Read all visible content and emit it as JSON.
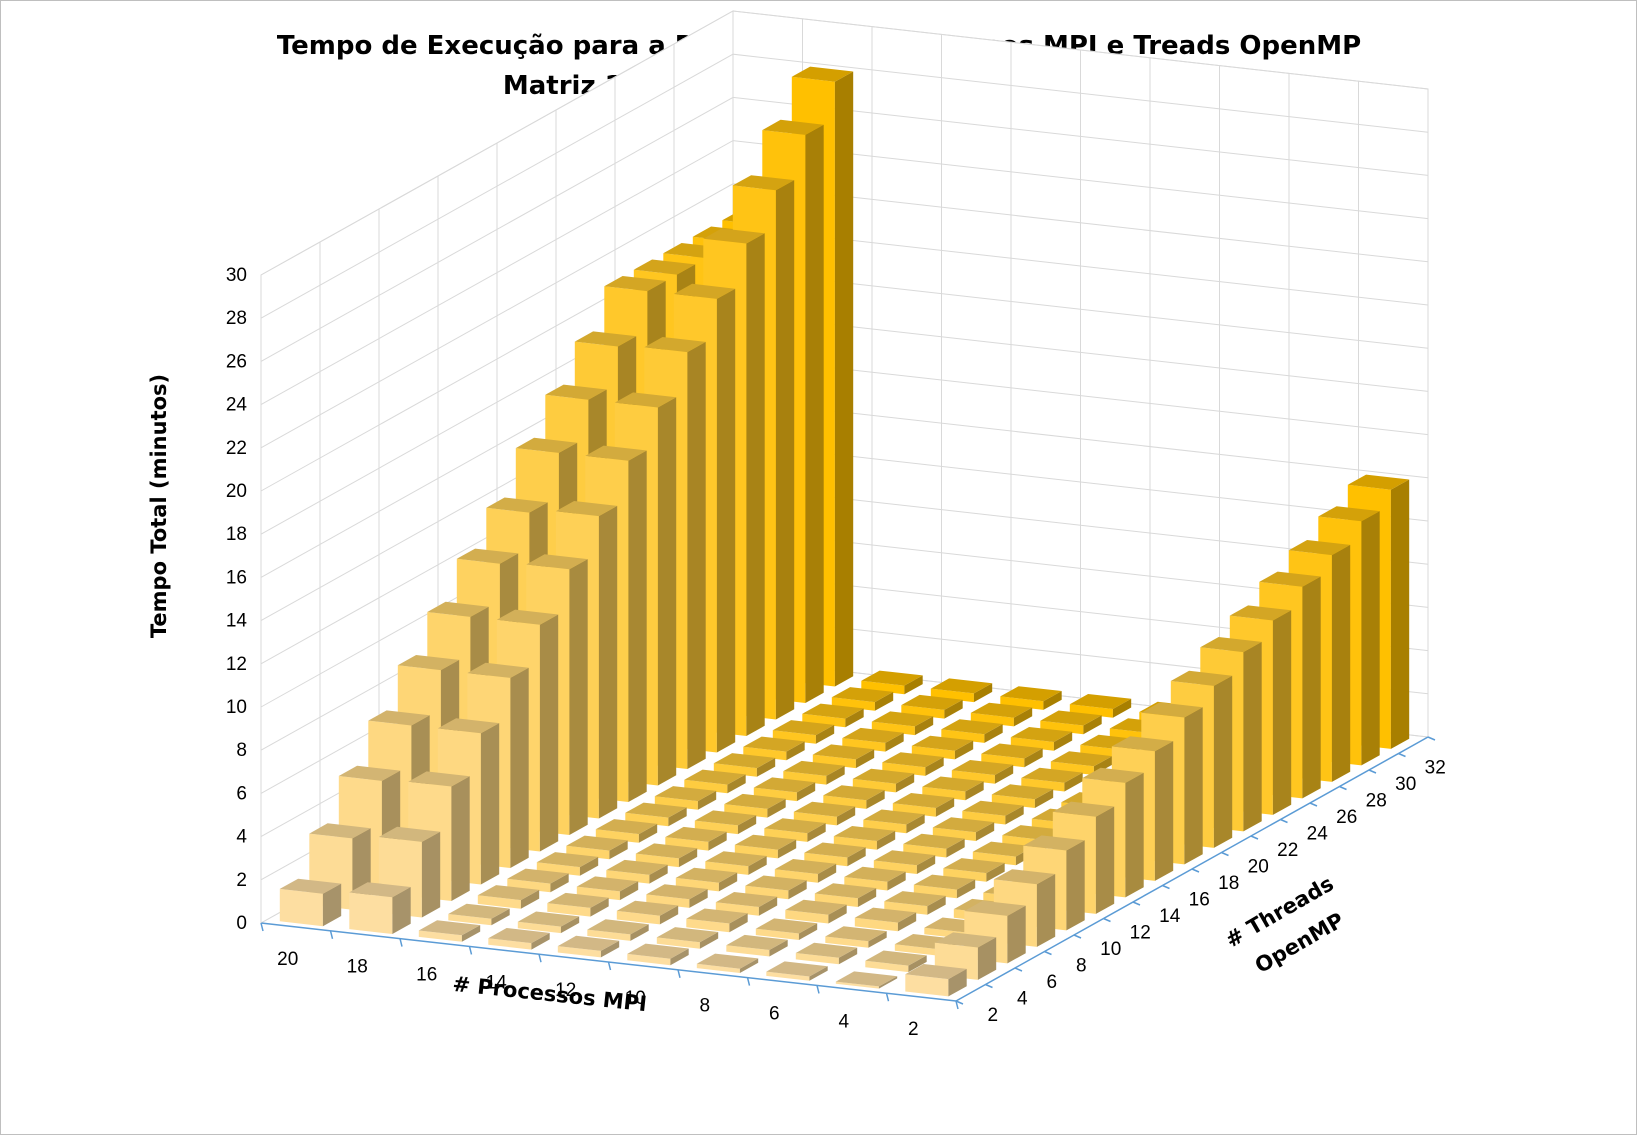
{
  "chart_data": {
    "type": "bar",
    "style": "3d-column",
    "title": "Tempo de Execução para a Relação entre Processos MPI e Treads OpenMP",
    "subtitle": "Matriz 1024x1024 (N_MAX = 8000) - 1Nodo",
    "zlabel": "Tempo Total (minutos)",
    "xlabel": "# Processos MPI",
    "ylabel_lines": [
      "# Threads",
      "OpenMP"
    ],
    "zlim": [
      0,
      30
    ],
    "z_ticks": [
      "0",
      "2",
      "4",
      "6",
      "8",
      "10",
      "12",
      "14",
      "16",
      "18",
      "20",
      "22",
      "24",
      "26",
      "28",
      "30"
    ],
    "mpi_processes": [
      "2",
      "4",
      "6",
      "8",
      "10",
      "12",
      "14",
      "16",
      "18",
      "20"
    ],
    "openmp_threads": [
      "2",
      "4",
      "6",
      "8",
      "10",
      "12",
      "14",
      "16",
      "18",
      "20",
      "22",
      "24",
      "26",
      "28",
      "30",
      "32"
    ],
    "values": [
      [
        0.8,
        1.5,
        2.2,
        2.9,
        3.7,
        4.5,
        5.3,
        6.0,
        6.8,
        7.5,
        8.3,
        9.0,
        9.8,
        10.5,
        11.3,
        12.0
      ],
      [
        0.1,
        0.3,
        0.3,
        0.3,
        0.4,
        0.4,
        0.4,
        0.4,
        0.4,
        0.4,
        0.4,
        0.4,
        0.4,
        0.4,
        0.4,
        0.4
      ],
      [
        0.2,
        0.3,
        0.3,
        0.4,
        0.4,
        0.4,
        0.4,
        0.4,
        0.4,
        0.4,
        0.4,
        0.4,
        0.4,
        0.4,
        0.4,
        0.4
      ],
      [
        0.2,
        0.3,
        0.3,
        0.4,
        0.4,
        0.4,
        0.4,
        0.4,
        0.4,
        0.4,
        0.4,
        0.4,
        0.4,
        0.4,
        0.4,
        0.4
      ],
      [
        0.3,
        0.3,
        0.4,
        0.4,
        0.4,
        0.4,
        0.4,
        0.4,
        0.4,
        0.4,
        0.4,
        0.4,
        0.4,
        0.4,
        0.4,
        0.4
      ],
      [
        0.3,
        0.3,
        0.4,
        0.4,
        0.4,
        0.4,
        0.4,
        0.4,
        0.4,
        0.4,
        0.4,
        0.4,
        0.4,
        0.4,
        0.4,
        0.4
      ],
      [
        0.3,
        0.3,
        0.4,
        0.4,
        0.4,
        0.4,
        0.4,
        0.4,
        0.4,
        0.4,
        0.4,
        0.4,
        0.4,
        0.4,
        0.4,
        0.4
      ],
      [
        0.3,
        0.3,
        0.4,
        0.4,
        0.4,
        0.4,
        0.4,
        0.4,
        0.4,
        0.4,
        0.4,
        0.4,
        0.4,
        0.4,
        0.4,
        0.4
      ],
      [
        1.7,
        3.5,
        5.3,
        7.0,
        8.8,
        10.5,
        12.3,
        14.0,
        15.8,
        17.5,
        19.3,
        21.0,
        22.8,
        24.5,
        26.3,
        28.0
      ],
      [
        1.5,
        3.3,
        5.2,
        7.0,
        8.8,
        10.5,
        12.2,
        13.8,
        15.8,
        17.5,
        19.2,
        21.0,
        21.0,
        21.0,
        21.0,
        21.0
      ]
    ],
    "color_light": "#fde3bd",
    "color_dark": "#ffc000",
    "grid": true,
    "legend": "none"
  }
}
